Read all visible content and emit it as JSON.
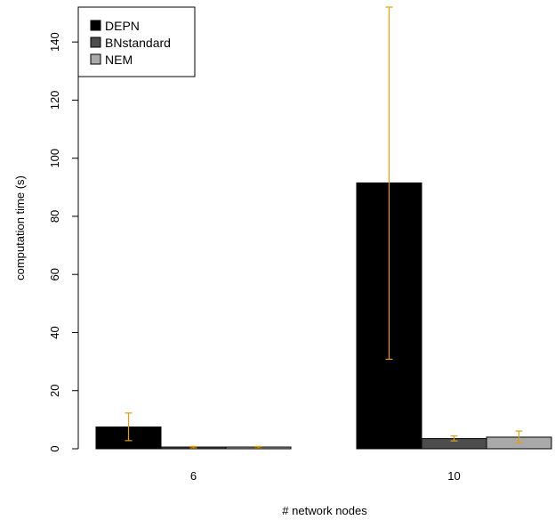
{
  "chart_data": {
    "type": "bar",
    "title": "",
    "xlabel": "# network nodes",
    "ylabel": "computation time (s)",
    "categories": [
      "6",
      "10"
    ],
    "ylim": [
      0,
      152
    ],
    "yticks": [
      0,
      20,
      40,
      60,
      80,
      100,
      120,
      140
    ],
    "grid": false,
    "legend_position": "top-left",
    "error_bar_color": "#E69F00",
    "series": [
      {
        "name": "DEPN",
        "color": "#000000",
        "values": [
          7.5,
          91.5
        ],
        "error_low": [
          2.8,
          30.8
        ],
        "error_high": [
          12.3,
          152
        ]
      },
      {
        "name": "BNstandard",
        "color": "#4D4D4D",
        "values": [
          0.6,
          3.5
        ],
        "error_low": [
          0.3,
          2.7
        ],
        "error_high": [
          0.8,
          4.4
        ]
      },
      {
        "name": "NEM",
        "color": "#A9A9A9",
        "values": [
          0.6,
          4.0
        ],
        "error_low": [
          0.3,
          2.0
        ],
        "error_high": [
          0.8,
          6.1
        ]
      }
    ]
  }
}
